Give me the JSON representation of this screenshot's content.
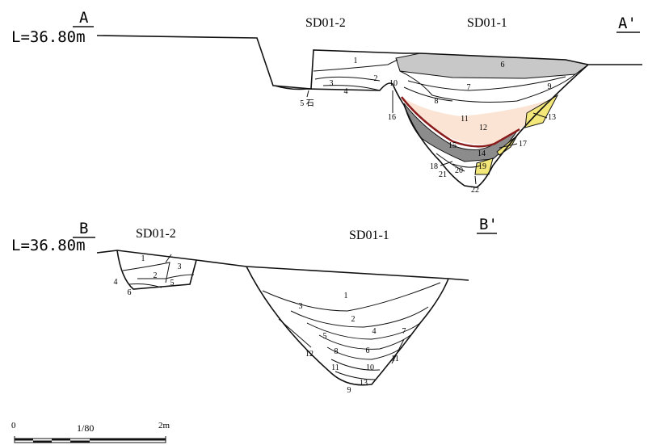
{
  "section_a": {
    "start_label": "A",
    "end_label": "A'",
    "elevation": "L=36.80m",
    "features": [
      "SD01-2",
      "SD01-1"
    ],
    "layers": [
      "1",
      "2",
      "3",
      "4",
      "5 石",
      "6",
      "7",
      "8",
      "9",
      "10",
      "11",
      "12",
      "13",
      "14",
      "15",
      "16",
      "17",
      "18",
      "19",
      "20",
      "21",
      "22"
    ]
  },
  "section_b": {
    "start_label": "B",
    "end_label": "B'",
    "elevation": "L=36.80m",
    "features": [
      "SD01-2",
      "SD01-1"
    ],
    "feature_1_layers": [
      "1",
      "2",
      "3",
      "4",
      "5",
      "6"
    ],
    "feature_2_layers": [
      "1",
      "2",
      "3",
      "4",
      "5",
      "6",
      "7",
      "8",
      "9",
      "10",
      "11",
      "11",
      "12",
      "13"
    ]
  },
  "scale_bar": {
    "start": "0",
    "ratio": "1/80",
    "end": "2m"
  }
}
